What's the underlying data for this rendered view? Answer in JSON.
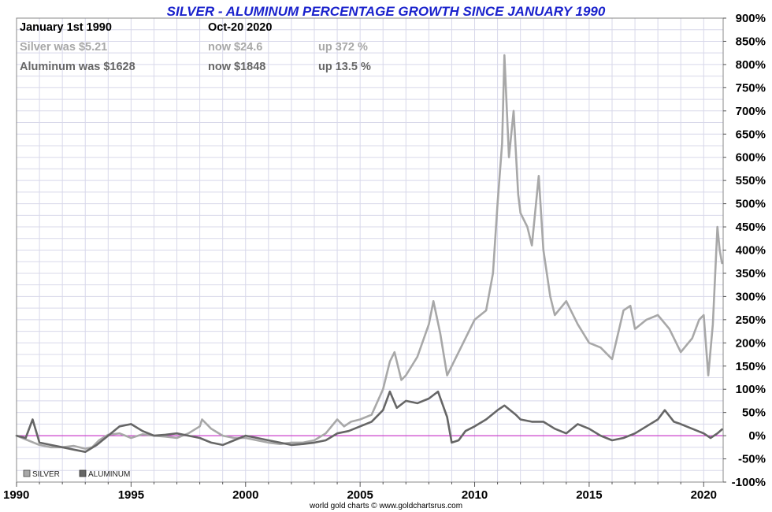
{
  "chart_data": {
    "type": "line",
    "title": "SILVER - ALUMINUM PERCENTAGE GROWTH SINCE JANUARY 1990",
    "info": {
      "start_label": "January 1st 1990",
      "end_label": "Oct-20  2020",
      "silver": {
        "was": "Silver was $5.21",
        "now": "now $24.6",
        "up": "up 372 %"
      },
      "aluminum": {
        "was": "Aluminum was $1628",
        "now": "now $1848",
        "up": "up 13.5 %"
      }
    },
    "credit": "world gold charts © www.goldchartsrus.com",
    "xlim": [
      1990,
      2020.85
    ],
    "ylim": [
      -100,
      900
    ],
    "x_ticks": [
      1990,
      1995,
      2000,
      2005,
      2010,
      2015,
      2020
    ],
    "y_ticks": [
      -100,
      -50,
      0,
      50,
      100,
      150,
      200,
      250,
      300,
      350,
      400,
      450,
      500,
      550,
      600,
      650,
      700,
      750,
      800,
      850,
      900
    ],
    "y_tick_labels": [
      "-100%",
      "-50%",
      "0%",
      "50%",
      "100%",
      "150%",
      "200%",
      "250%",
      "300%",
      "350%",
      "400%",
      "450%",
      "500%",
      "550%",
      "600%",
      "650%",
      "700%",
      "750%",
      "800%",
      "850%",
      "900%"
    ],
    "grid": true,
    "baseline": 0,
    "legend_placement": "bottom-left",
    "colors": {
      "silver": "#a8a8a8",
      "aluminum": "#666666",
      "baseline": "#cc44cc",
      "grid": "#d8d8ea",
      "title": "#1a22cc"
    },
    "series": [
      {
        "name": "SILVER",
        "x": [
          1990,
          1990.5,
          1991,
          1991.5,
          1992,
          1992.5,
          1993,
          1993.3,
          1993.6,
          1994,
          1994.5,
          1995,
          1995.5,
          1996,
          1996.5,
          1997,
          1997.5,
          1998,
          1998.1,
          1998.5,
          1999,
          1999.5,
          2000,
          2000.5,
          2001,
          2001.5,
          2002,
          2002.5,
          2003,
          2003.5,
          2004,
          2004.3,
          2004.6,
          2005,
          2005.5,
          2006,
          2006.3,
          2006.5,
          2006.8,
          2007,
          2007.5,
          2008,
          2008.2,
          2008.5,
          2008.8,
          2009,
          2009.5,
          2010,
          2010.5,
          2010.8,
          2011,
          2011.2,
          2011.3,
          2011.5,
          2011.7,
          2011.9,
          2012,
          2012.3,
          2012.5,
          2012.8,
          2013,
          2013.3,
          2013.5,
          2014,
          2014.5,
          2015,
          2015.5,
          2016,
          2016.5,
          2016.8,
          2017,
          2017.5,
          2018,
          2018.5,
          2019,
          2019.5,
          2019.8,
          2020,
          2020.2,
          2020.4,
          2020.6,
          2020.7,
          2020.8
        ],
        "y": [
          0,
          -10,
          -20,
          -25,
          -25,
          -22,
          -28,
          -25,
          -10,
          2,
          5,
          -5,
          3,
          0,
          -2,
          -5,
          5,
          20,
          35,
          15,
          0,
          -5,
          -5,
          -10,
          -15,
          -18,
          -15,
          -15,
          -10,
          5,
          35,
          20,
          30,
          35,
          45,
          100,
          160,
          180,
          120,
          130,
          170,
          240,
          290,
          220,
          130,
          150,
          200,
          250,
          270,
          350,
          500,
          630,
          820,
          600,
          700,
          520,
          480,
          450,
          410,
          560,
          400,
          300,
          260,
          290,
          240,
          200,
          190,
          165,
          270,
          280,
          230,
          250,
          260,
          230,
          180,
          210,
          250,
          260,
          130,
          240,
          450,
          400,
          372
        ]
      },
      {
        "name": "ALUMINUM",
        "x": [
          1990,
          1990.4,
          1990.7,
          1991,
          1991.5,
          1992,
          1992.5,
          1993,
          1993.5,
          1994,
          1994.5,
          1995,
          1995.5,
          1996,
          1996.5,
          1997,
          1997.5,
          1998,
          1998.5,
          1999,
          1999.5,
          2000,
          2000.5,
          2001,
          2001.5,
          2002,
          2002.5,
          2003,
          2003.5,
          2004,
          2004.5,
          2005,
          2005.5,
          2006,
          2006.3,
          2006.6,
          2007,
          2007.5,
          2008,
          2008.4,
          2008.8,
          2009,
          2009.3,
          2009.6,
          2010,
          2010.5,
          2011,
          2011.3,
          2011.8,
          2012,
          2012.5,
          2013,
          2013.5,
          2014,
          2014.5,
          2015,
          2015.5,
          2016,
          2016.5,
          2017,
          2017.5,
          2018,
          2018.3,
          2018.7,
          2019,
          2019.5,
          2020,
          2020.3,
          2020.6,
          2020.8
        ],
        "y": [
          0,
          -5,
          35,
          -15,
          -20,
          -25,
          -30,
          -35,
          -20,
          0,
          20,
          25,
          10,
          0,
          2,
          5,
          0,
          -5,
          -15,
          -20,
          -10,
          0,
          -5,
          -10,
          -15,
          -20,
          -18,
          -15,
          -10,
          5,
          10,
          20,
          30,
          55,
          95,
          60,
          75,
          70,
          80,
          95,
          40,
          -15,
          -10,
          10,
          20,
          35,
          55,
          65,
          45,
          35,
          30,
          30,
          15,
          5,
          25,
          15,
          0,
          -10,
          -5,
          5,
          20,
          35,
          55,
          30,
          25,
          15,
          5,
          -5,
          5,
          13.5
        ]
      }
    ]
  }
}
